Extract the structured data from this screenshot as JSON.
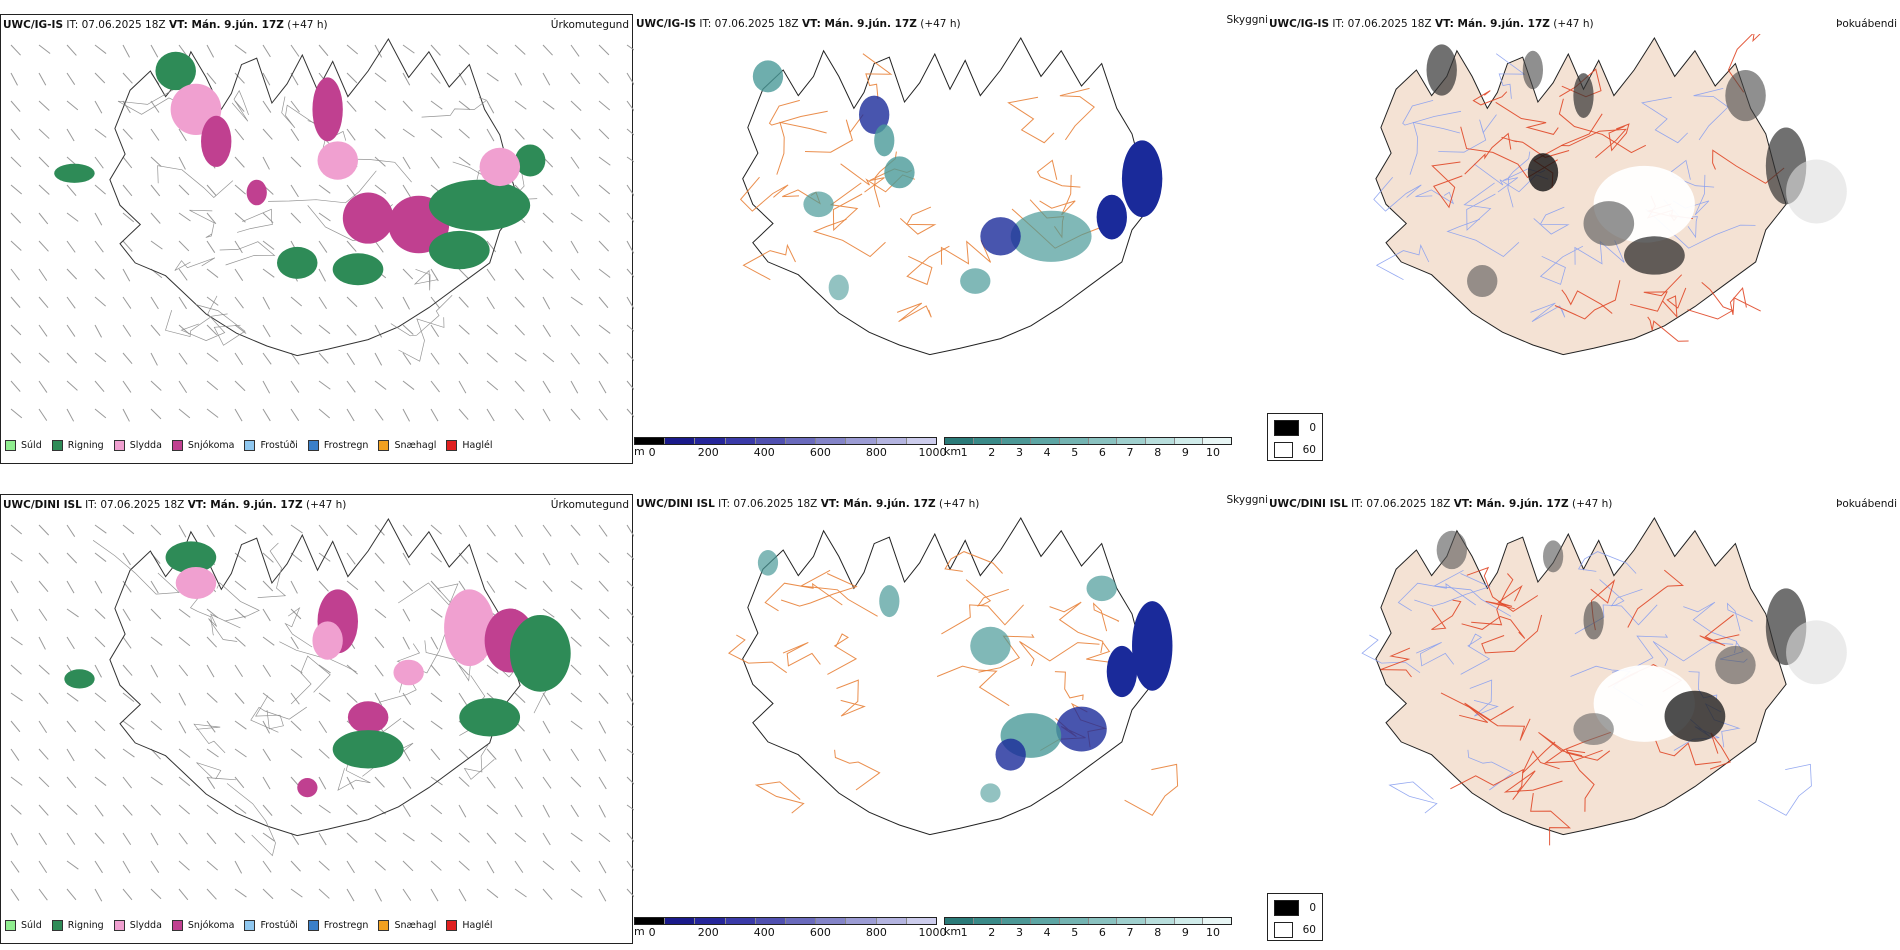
{
  "rows": [
    {
      "model": "UWC/IG-IS",
      "it": "IT: 07.06.2025 18Z",
      "vt": "VT: Mán. 9.jún. 17Z",
      "lead": "(+47 h)"
    },
    {
      "model": "UWC/DINI ISL",
      "it": "IT: 07.06.2025 18Z",
      "vt": "VT: Mán. 9.jún. 17Z",
      "lead": "(+47 h)"
    }
  ],
  "panel_labels": {
    "precip": "Úrkomutegund",
    "visibility": "Skyggni",
    "fog": "Þokuábendi"
  },
  "precip_legend": [
    {
      "label": "Súld",
      "color": "#90ee90"
    },
    {
      "label": "Rigning",
      "color": "#2e8b57"
    },
    {
      "label": "Slydda",
      "color": "#f0a0d0"
    },
    {
      "label": "Snjókoma",
      "color": "#c04090"
    },
    {
      "label": "Frostúði",
      "color": "#90c8f0"
    },
    {
      "label": "Frostregn",
      "color": "#3a7fc8"
    },
    {
      "label": "Snæhagl",
      "color": "#f0a020"
    },
    {
      "label": "Haglél",
      "color": "#e02020"
    }
  ],
  "vis_m_scale": {
    "unit": "m",
    "ticks": [
      "0",
      "200",
      "400",
      "600",
      "800",
      "1000"
    ],
    "colors": [
      "#000000",
      "#1a1a8a",
      "#26269a",
      "#3a3aa8",
      "#5050b0",
      "#6a6abc",
      "#8484c8",
      "#9c9cd4",
      "#b4b4e0",
      "#ccccec"
    ]
  },
  "vis_km_scale": {
    "unit": "km",
    "ticks": [
      "1",
      "2",
      "3",
      "4",
      "5",
      "6",
      "7",
      "8",
      "9",
      "10"
    ],
    "colors": [
      "#2a7a78",
      "#3a8a88",
      "#4c9896",
      "#5ea6a4",
      "#74b4b2",
      "#8ac2c0",
      "#a0d0ce",
      "#b8dedc",
      "#d0ecea",
      "#e8f6f5"
    ]
  },
  "cloud_legend": [
    {
      "label": "0",
      "color": "#000000"
    },
    {
      "label": "60",
      "color": "#ffffff"
    }
  ],
  "colors": {
    "land_fog": "#f4e2d4",
    "road": "#e8823a",
    "road_red": "#e04828",
    "river": "#8aa0f0",
    "rain": "#2e8b57",
    "snow": "#c04090",
    "sleet": "#f0a0d0",
    "vis_low": "#1a2a9a",
    "vis_teal": "#4a9a98"
  }
}
